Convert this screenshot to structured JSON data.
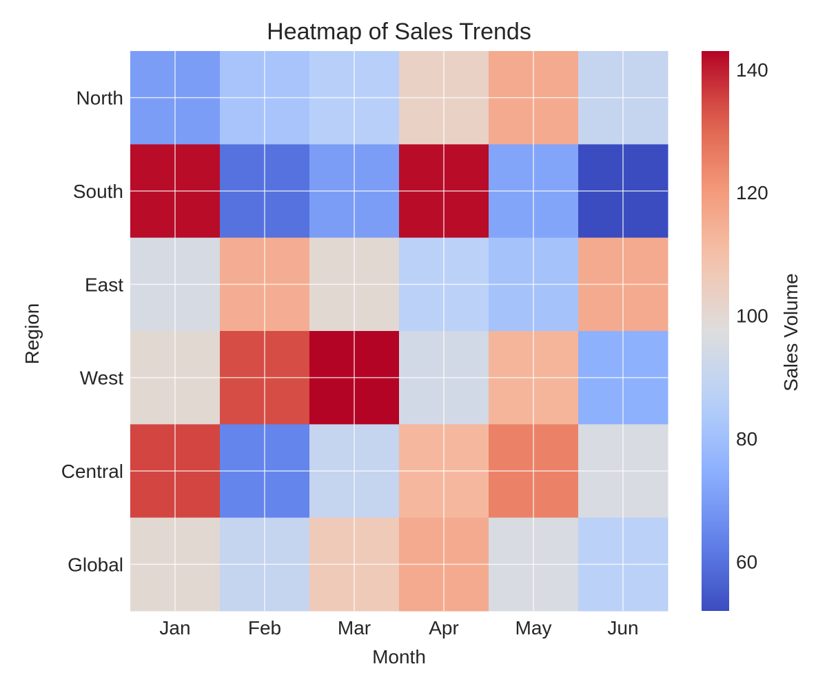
{
  "chart_data": {
    "type": "heatmap",
    "title": "Heatmap of Sales Trends",
    "xlabel": "Month",
    "ylabel": "Region",
    "x_categories": [
      "Jan",
      "Feb",
      "Mar",
      "Apr",
      "May",
      "Jun"
    ],
    "y_categories": [
      "North",
      "South",
      "East",
      "West",
      "Central",
      "Global"
    ],
    "values": [
      [
        70,
        82,
        86,
        103,
        116,
        90
      ],
      [
        142,
        60,
        70,
        142,
        72,
        52
      ],
      [
        95,
        115,
        100,
        87,
        81,
        116
      ],
      [
        100,
        134,
        143,
        94,
        113,
        75
      ],
      [
        135,
        64,
        90,
        112,
        125,
        96
      ],
      [
        100,
        90,
        106,
        116,
        96,
        87
      ]
    ],
    "colorbar": {
      "label": "Sales Volume",
      "min": 52,
      "max": 143,
      "ticks": [
        "60",
        "80",
        "100",
        "120",
        "140"
      ],
      "colormap": "coolwarm"
    },
    "grid": true
  }
}
